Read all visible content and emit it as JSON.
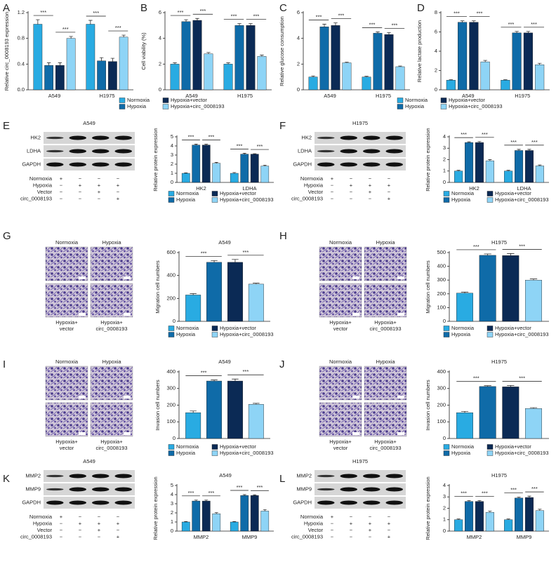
{
  "panel_labels": [
    "A",
    "B",
    "C",
    "D",
    "E",
    "F",
    "G",
    "H",
    "I",
    "J",
    "K",
    "L"
  ],
  "chart_data": [
    {
      "type": "bar",
      "y_label": "Relative circ_0008193 expression",
      "categories": [
        "A549",
        "H1975"
      ],
      "ylim": [
        0,
        1.2
      ],
      "yticks": [
        {
          "value": 0,
          "label": "0.0"
        },
        {
          "value": 0.4,
          "label": "0.4"
        },
        {
          "value": 0.8,
          "label": "0.8"
        },
        {
          "value": 1.2,
          "label": "1.2"
        }
      ],
      "significance": "***",
      "legend": false,
      "series": [
        {
          "color": "#29abe2",
          "values": [
            1.02,
            1.02
          ],
          "errors": [
            0.07,
            0.06
          ]
        },
        {
          "color": "#0f6ba8",
          "values": [
            0.38,
            0.45
          ],
          "errors": [
            0.04,
            0.05
          ]
        },
        {
          "color": "#0b2a55",
          "values": [
            0.38,
            0.44
          ],
          "errors": [
            0.04,
            0.05
          ]
        },
        {
          "color": "#8ed4f6",
          "values": [
            0.8,
            0.82
          ],
          "errors": [
            0.03,
            0.03
          ]
        }
      ]
    },
    {
      "type": "bar",
      "y_label": "Cell viability (%)",
      "categories": [
        "A549",
        "H1975"
      ],
      "ylim": [
        0,
        6
      ],
      "yticks": [
        0,
        2,
        4,
        6
      ],
      "significance": "***",
      "legend": true,
      "series": [
        {
          "name": "Normoxia",
          "color": "#29abe2",
          "values": [
            2.0,
            2.0
          ],
          "errors": [
            0.1,
            0.1
          ]
        },
        {
          "name": "Hypoxia",
          "color": "#0f6ba8",
          "values": [
            5.3,
            5.0
          ],
          "errors": [
            0.15,
            0.15
          ]
        },
        {
          "name": "Hypoxia+vector",
          "color": "#0b2a55",
          "values": [
            5.4,
            5.0
          ],
          "errors": [
            0.15,
            0.15
          ]
        },
        {
          "name": "Hypoxia+circ_0008193",
          "color": "#8ed4f6",
          "values": [
            2.8,
            2.6
          ],
          "errors": [
            0.1,
            0.1
          ]
        }
      ]
    },
    {
      "type": "bar",
      "y_label": "Relative glucose consumption",
      "categories": [
        "A549",
        "H1975"
      ],
      "ylim": [
        0,
        6
      ],
      "yticks": [
        0,
        2,
        4,
        6
      ],
      "significance": "***",
      "legend": false,
      "series": [
        {
          "color": "#29abe2",
          "values": [
            1.0,
            1.0
          ],
          "errors": [
            0.08,
            0.05
          ]
        },
        {
          "color": "#0f6ba8",
          "values": [
            4.9,
            4.4
          ],
          "errors": [
            0.2,
            0.1
          ]
        },
        {
          "color": "#0b2a55",
          "values": [
            5.0,
            4.3
          ],
          "errors": [
            0.2,
            0.15
          ]
        },
        {
          "color": "#8ed4f6",
          "values": [
            2.1,
            1.8
          ],
          "errors": [
            0.05,
            0.05
          ]
        }
      ]
    },
    {
      "type": "bar",
      "y_label": "Relative lactate production",
      "categories": [
        "A549",
        "H1975"
      ],
      "ylim": [
        0,
        8
      ],
      "yticks": [
        0,
        2,
        4,
        6,
        8
      ],
      "significance": "***",
      "legend": true,
      "series": [
        {
          "name": "Normoxia",
          "color": "#29abe2",
          "values": [
            1.0,
            1.0
          ],
          "errors": [
            0.05,
            0.05
          ]
        },
        {
          "name": "Hypoxia",
          "color": "#0f6ba8",
          "values": [
            7.0,
            5.9
          ],
          "errors": [
            0.15,
            0.15
          ]
        },
        {
          "name": "Hypoxia+vector",
          "color": "#0b2a55",
          "values": [
            7.0,
            5.9
          ],
          "errors": [
            0.15,
            0.15
          ]
        },
        {
          "name": "Hypoxia+circ_0008193",
          "color": "#8ed4f6",
          "values": [
            2.9,
            2.6
          ],
          "errors": [
            0.15,
            0.15
          ]
        }
      ]
    },
    {
      "type": "bar",
      "y_label": "Relative protein expression",
      "categories": [
        "HK2",
        "LDHA"
      ],
      "ylim": [
        0,
        5
      ],
      "yticks": [
        0,
        1,
        2,
        3,
        4,
        5
      ],
      "significance": "***",
      "legend": true,
      "series": [
        {
          "name": "Normoxia",
          "color": "#29abe2",
          "values": [
            1.0,
            1.0
          ],
          "errors": [
            0.05,
            0.08
          ]
        },
        {
          "name": "Hypoxia",
          "color": "#0f6ba8",
          "values": [
            4.1,
            3.1
          ],
          "errors": [
            0.1,
            0.1
          ]
        },
        {
          "name": "Hypoxia+vector",
          "color": "#0b2a55",
          "values": [
            4.1,
            3.1
          ],
          "errors": [
            0.08,
            0.05
          ]
        },
        {
          "name": "Hypoxia+circ_0008193",
          "color": "#8ed4f6",
          "values": [
            2.1,
            1.8
          ],
          "errors": [
            0.1,
            0.1
          ]
        }
      ]
    },
    {
      "type": "bar",
      "y_label": "Relative protein expression",
      "categories": [
        "HK2",
        "LDHA"
      ],
      "ylim": [
        0,
        4
      ],
      "yticks": [
        0,
        1,
        2,
        3,
        4
      ],
      "significance": "***",
      "legend": true,
      "series": [
        {
          "name": "Normoxia",
          "color": "#29abe2",
          "values": [
            1.0,
            1.0
          ],
          "errors": [
            0.06,
            0.06
          ]
        },
        {
          "name": "Hypoxia",
          "color": "#0f6ba8",
          "values": [
            3.5,
            2.8
          ],
          "errors": [
            0.06,
            0.1
          ]
        },
        {
          "name": "Hypoxia+vector",
          "color": "#0b2a55",
          "values": [
            3.5,
            2.8
          ],
          "errors": [
            0.08,
            0.1
          ]
        },
        {
          "name": "Hypoxia+circ_0008193",
          "color": "#8ed4f6",
          "values": [
            1.9,
            1.45
          ],
          "errors": [
            0.1,
            0.08
          ]
        }
      ]
    },
    {
      "type": "bar",
      "title": "A549",
      "y_label": "Migration cell numbers",
      "categories": [
        null
      ],
      "ylim": [
        0,
        600
      ],
      "yticks": [
        0,
        200,
        400,
        600
      ],
      "significance": "***",
      "legend": true,
      "series": [
        {
          "name": "Normoxia",
          "color": "#29abe2",
          "values": [
            230
          ],
          "errors": [
            12
          ]
        },
        {
          "name": "Hypoxia",
          "color": "#0f6ba8",
          "values": [
            515
          ],
          "errors": [
            15
          ]
        },
        {
          "name": "Hypoxia+vector",
          "color": "#0b2a55",
          "values": [
            515
          ],
          "errors": [
            25
          ]
        },
        {
          "name": "Hypoxia+circ_0008193",
          "color": "#8ed4f6",
          "values": [
            325
          ],
          "errors": [
            8
          ]
        }
      ]
    },
    {
      "type": "bar",
      "title": "H1975",
      "y_label": "Migration cell numbers",
      "categories": [
        null
      ],
      "ylim": [
        0,
        500
      ],
      "yticks": [
        0,
        100,
        200,
        300,
        400,
        500
      ],
      "significance": "***",
      "legend": true,
      "series": [
        {
          "name": "Normoxia",
          "color": "#29abe2",
          "values": [
            205
          ],
          "errors": [
            8
          ]
        },
        {
          "name": "Hypoxia",
          "color": "#0f6ba8",
          "values": [
            480
          ],
          "errors": [
            10
          ]
        },
        {
          "name": "Hypoxia+vector",
          "color": "#0b2a55",
          "values": [
            478
          ],
          "errors": [
            15
          ]
        },
        {
          "name": "Hypoxia+circ_0008193",
          "color": "#8ed4f6",
          "values": [
            300
          ],
          "errors": [
            8
          ]
        }
      ]
    },
    {
      "type": "bar",
      "title": "A549",
      "y_label": "Invasion cell numbers",
      "categories": [
        null
      ],
      "ylim": [
        0,
        400
      ],
      "yticks": [
        0,
        100,
        200,
        300,
        400
      ],
      "significance": "***",
      "legend": true,
      "series": [
        {
          "name": "Normoxia",
          "color": "#29abe2",
          "values": [
            155
          ],
          "errors": [
            10
          ]
        },
        {
          "name": "Hypoxia",
          "color": "#0f6ba8",
          "values": [
            345
          ],
          "errors": [
            6
          ]
        },
        {
          "name": "Hypoxia+vector",
          "color": "#0b2a55",
          "values": [
            345
          ],
          "errors": [
            12
          ]
        },
        {
          "name": "Hypoxia+circ_0008193",
          "color": "#8ed4f6",
          "values": [
            205
          ],
          "errors": [
            6
          ]
        }
      ]
    },
    {
      "type": "bar",
      "title": "H1975",
      "y_label": "Invasion cell numbers",
      "categories": [
        null
      ],
      "ylim": [
        0,
        400
      ],
      "yticks": [
        0,
        100,
        200,
        300,
        400
      ],
      "significance": "***",
      "legend": true,
      "series": [
        {
          "name": "Normoxia",
          "color": "#29abe2",
          "values": [
            155
          ],
          "errors": [
            8
          ]
        },
        {
          "name": "Hypoxia",
          "color": "#0f6ba8",
          "values": [
            312
          ],
          "errors": [
            5
          ]
        },
        {
          "name": "Hypoxia+vector",
          "color": "#0b2a55",
          "values": [
            310
          ],
          "errors": [
            8
          ]
        },
        {
          "name": "Hypoxia+circ_0008193",
          "color": "#8ed4f6",
          "values": [
            180
          ],
          "errors": [
            5
          ]
        }
      ]
    },
    {
      "type": "bar",
      "title": "A549",
      "y_label": "Relative protein expression",
      "categories": [
        "MMP2",
        "MMP9"
      ],
      "ylim": [
        0,
        5
      ],
      "yticks": [
        0,
        1,
        2,
        3,
        4,
        5
      ],
      "significance": "***",
      "legend": false,
      "series": [
        {
          "color": "#29abe2",
          "values": [
            1.0,
            1.0
          ],
          "errors": [
            0.05,
            0.05
          ]
        },
        {
          "color": "#0f6ba8",
          "values": [
            3.3,
            3.9
          ],
          "errors": [
            0.1,
            0.1
          ]
        },
        {
          "color": "#0b2a55",
          "values": [
            3.3,
            3.9
          ],
          "errors": [
            0.1,
            0.08
          ]
        },
        {
          "color": "#8ed4f6",
          "values": [
            1.9,
            2.2
          ],
          "errors": [
            0.12,
            0.15
          ]
        }
      ]
    },
    {
      "type": "bar",
      "title": "H1975",
      "y_label": "Relative protein expression",
      "categories": [
        "MMP2",
        "MMP9"
      ],
      "ylim": [
        0,
        4
      ],
      "yticks": [
        0,
        1,
        2,
        3,
        4
      ],
      "significance": "***",
      "legend": false,
      "series": [
        {
          "color": "#29abe2",
          "values": [
            1.0,
            1.0
          ],
          "errors": [
            0.06,
            0.06
          ]
        },
        {
          "color": "#0f6ba8",
          "values": [
            2.6,
            2.9
          ],
          "errors": [
            0.08,
            0.08
          ]
        },
        {
          "color": "#0b2a55",
          "values": [
            2.6,
            2.95
          ],
          "errors": [
            0.08,
            0.12
          ]
        },
        {
          "color": "#8ed4f6",
          "values": [
            1.65,
            1.8
          ],
          "errors": [
            0.1,
            0.12
          ]
        }
      ]
    }
  ],
  "blot_conditions": [
    {
      "name": "Normoxia",
      "signs": [
        "+",
        "−",
        "−",
        "−"
      ]
    },
    {
      "name": "Hypoxia",
      "signs": [
        "−",
        "+",
        "+",
        "+"
      ]
    },
    {
      "name": "Vector",
      "signs": [
        "−",
        "−",
        "+",
        "−"
      ]
    },
    {
      "name": "circ_0008193",
      "signs": [
        "−",
        "−",
        "−",
        "+"
      ]
    }
  ],
  "blots": [
    {
      "title": "A549",
      "bands": [
        "HK2",
        "LDHA",
        "GAPDH"
      ]
    },
    {
      "title": "H1975",
      "bands": [
        "HK2",
        "LDHA",
        "GAPDH"
      ]
    },
    {
      "title": "A549",
      "bands": [
        "MMP2",
        "MMP9",
        "GAPDH"
      ]
    },
    {
      "title": "H1975",
      "bands": [
        "MMP2",
        "MMP9",
        "GAPDH"
      ]
    }
  ],
  "micrograph_labels": [
    [
      "Normoxia"
    ],
    [
      "Hypoxia"
    ],
    [
      "Hypoxia+",
      "vector"
    ],
    [
      "Hypoxia+",
      "circ_0008193"
    ]
  ]
}
